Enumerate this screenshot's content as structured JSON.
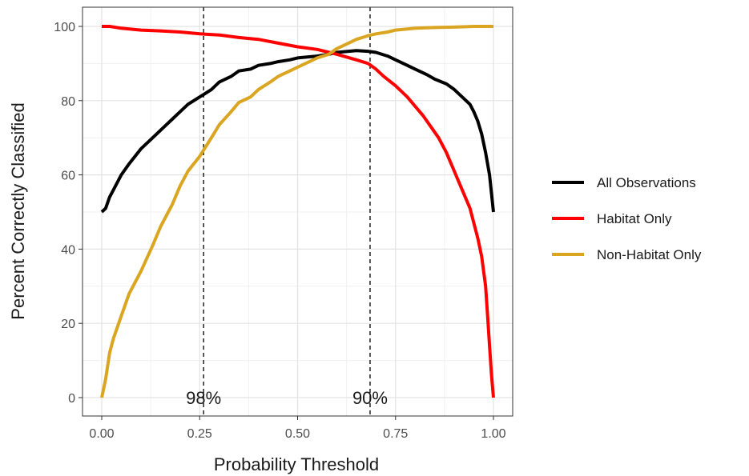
{
  "chart_data": {
    "type": "line",
    "title": "",
    "xlabel": "Probability Threshold",
    "ylabel": "Percent Correctly Classified",
    "xlim": [
      0,
      1
    ],
    "ylim": [
      0,
      100
    ],
    "x_ticks": [
      0,
      0.25,
      0.5,
      0.75,
      1
    ],
    "x_tick_labels": [
      "0.00",
      "0.25",
      "0.50",
      "0.75",
      "1.00"
    ],
    "y_ticks": [
      0,
      20,
      40,
      60,
      80,
      100
    ],
    "y_tick_labels": [
      "0",
      "20",
      "40",
      "60",
      "80",
      "100"
    ],
    "grid": true,
    "legend_position": "right",
    "series": [
      {
        "name": "All Observations",
        "color": "#000000",
        "x": [
          0,
          0.01,
          0.02,
          0.03,
          0.05,
          0.07,
          0.1,
          0.13,
          0.15,
          0.18,
          0.2,
          0.22,
          0.25,
          0.28,
          0.3,
          0.33,
          0.35,
          0.38,
          0.4,
          0.43,
          0.45,
          0.48,
          0.5,
          0.53,
          0.55,
          0.58,
          0.6,
          0.63,
          0.65,
          0.68,
          0.7,
          0.73,
          0.75,
          0.78,
          0.8,
          0.83,
          0.85,
          0.88,
          0.9,
          0.92,
          0.94,
          0.95,
          0.96,
          0.97,
          0.98,
          0.99,
          1.0
        ],
        "y": [
          50,
          51,
          54,
          56,
          60,
          63,
          67,
          70,
          72,
          75,
          77,
          79,
          81,
          83,
          85,
          86.5,
          88,
          88.5,
          89.5,
          90,
          90.5,
          91,
          91.5,
          91.8,
          92,
          92.5,
          93,
          93.3,
          93.5,
          93.3,
          93,
          92,
          91,
          89.5,
          88.5,
          87,
          85.8,
          84.5,
          83,
          81,
          79,
          77,
          74.5,
          71,
          66,
          60,
          50
        ]
      },
      {
        "name": "Habitat Only",
        "color": "#ff0000",
        "x": [
          0,
          0.02,
          0.05,
          0.1,
          0.15,
          0.2,
          0.25,
          0.3,
          0.35,
          0.4,
          0.45,
          0.5,
          0.55,
          0.6,
          0.65,
          0.68,
          0.7,
          0.72,
          0.75,
          0.78,
          0.8,
          0.82,
          0.84,
          0.86,
          0.88,
          0.9,
          0.92,
          0.94,
          0.95,
          0.96,
          0.97,
          0.98,
          0.985,
          0.99,
          0.995,
          1.0
        ],
        "y": [
          100,
          100,
          99.5,
          99,
          98.8,
          98.5,
          98,
          97.7,
          97,
          96.5,
          95.5,
          94.5,
          93.8,
          92.5,
          91,
          90,
          88.5,
          86.5,
          84,
          81,
          78.5,
          76,
          73,
          70,
          66,
          61,
          56,
          51,
          47,
          43,
          38,
          30,
          22,
          14,
          6,
          0
        ]
      },
      {
        "name": "Non-Habitat Only",
        "color": "#daa520",
        "x": [
          0,
          0.01,
          0.02,
          0.03,
          0.05,
          0.07,
          0.1,
          0.13,
          0.15,
          0.18,
          0.2,
          0.22,
          0.25,
          0.28,
          0.3,
          0.33,
          0.35,
          0.38,
          0.4,
          0.43,
          0.45,
          0.48,
          0.5,
          0.53,
          0.55,
          0.58,
          0.6,
          0.63,
          0.65,
          0.68,
          0.7,
          0.73,
          0.75,
          0.78,
          0.8,
          0.85,
          0.9,
          0.95,
          1.0
        ],
        "y": [
          0,
          5,
          12,
          16,
          22,
          28,
          34,
          41,
          46,
          52,
          57,
          61,
          65,
          70,
          73.5,
          77,
          79.5,
          81,
          83,
          85,
          86.5,
          88,
          89,
          90.5,
          91.5,
          92.5,
          94,
          95.5,
          96.5,
          97.5,
          98,
          98.5,
          99,
          99.3,
          99.5,
          99.7,
          99.8,
          100,
          100
        ]
      }
    ],
    "vlines": [
      {
        "x": 0.26,
        "label": "98%"
      },
      {
        "x": 0.685,
        "label": "90%"
      }
    ]
  }
}
